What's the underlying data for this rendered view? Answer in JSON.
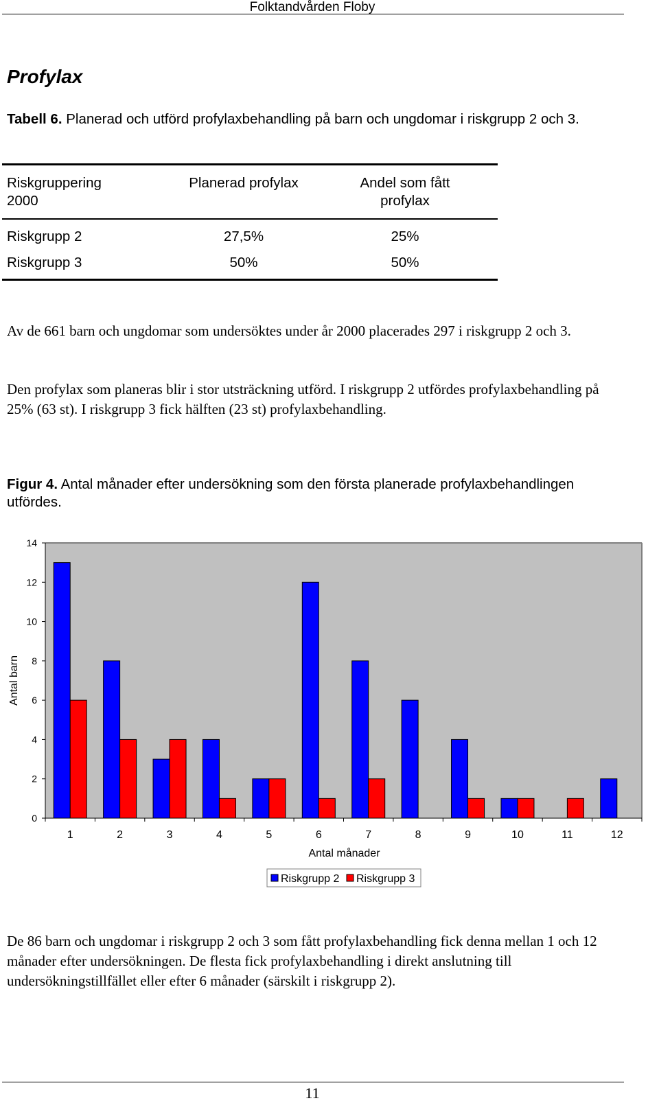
{
  "header": {
    "title": "Folktandvården Floby"
  },
  "section": {
    "title": "Profylax"
  },
  "table_caption": {
    "label": "Tabell 6.",
    "text": " Planerad och utförd profylaxbehandling på barn och ungdomar i riskgrupp 2 och 3."
  },
  "table": {
    "headers": [
      "Riskgruppering 2000",
      "Planerad profylax",
      "Andel som fått profylax"
    ],
    "header_lines": [
      [
        "Riskgruppering",
        "2000"
      ],
      [
        "Planerad profylax"
      ],
      [
        "Andel som fått",
        "profylax"
      ]
    ],
    "rows": [
      [
        "Riskgrupp 2",
        "27,5%",
        "25%"
      ],
      [
        "Riskgrupp 3",
        "50%",
        "50%"
      ]
    ]
  },
  "paragraphs": [
    "Av de 661 barn och ungdomar som undersöktes under år 2000 placerades 297 i riskgrupp 2 och 3.",
    "Den profylax som planeras blir i stor utsträckning utförd. I riskgrupp 2 utfördes profylaxbehandling på 25% (63 st). I riskgrupp 3 fick hälften (23 st) profylaxbehandling."
  ],
  "figure_caption": {
    "label": "Figur 4.",
    "text": " Antal månader efter undersökning som den första planerade profylaxbehandlingen utfördes."
  },
  "chart_data": {
    "type": "bar",
    "categories": [
      "1",
      "2",
      "3",
      "4",
      "5",
      "6",
      "7",
      "8",
      "9",
      "10",
      "11",
      "12"
    ],
    "series": [
      {
        "name": "Riskgrupp 2",
        "color": "#0000ff",
        "values": [
          13,
          8,
          3,
          4,
          2,
          12,
          8,
          6,
          4,
          1,
          0,
          2
        ]
      },
      {
        "name": "Riskgrupp 3",
        "color": "#ff0000",
        "values": [
          6,
          4,
          4,
          1,
          2,
          1,
          2,
          0,
          1,
          1,
          1,
          0
        ]
      }
    ],
    "xlabel": "Antal månader",
    "ylabel": "Antal barn",
    "ylim": [
      0,
      14
    ],
    "yticks": [
      "0",
      "2",
      "4",
      "6",
      "8",
      "10",
      "12",
      "14"
    ],
    "grid": false,
    "plot_background": "#c0c0c0",
    "legend_position": "bottom"
  },
  "closing_paragraph": "De 86 barn och ungdomar i riskgrupp 2 och 3 som fått profylaxbehandling fick denna mellan 1 och 12 månader efter undersökningen. De flesta fick profylaxbehandling i direkt anslutning till undersökningstillfället eller efter 6 månader (särskilt i riskgrupp 2).",
  "footer": {
    "page_number": "11"
  }
}
